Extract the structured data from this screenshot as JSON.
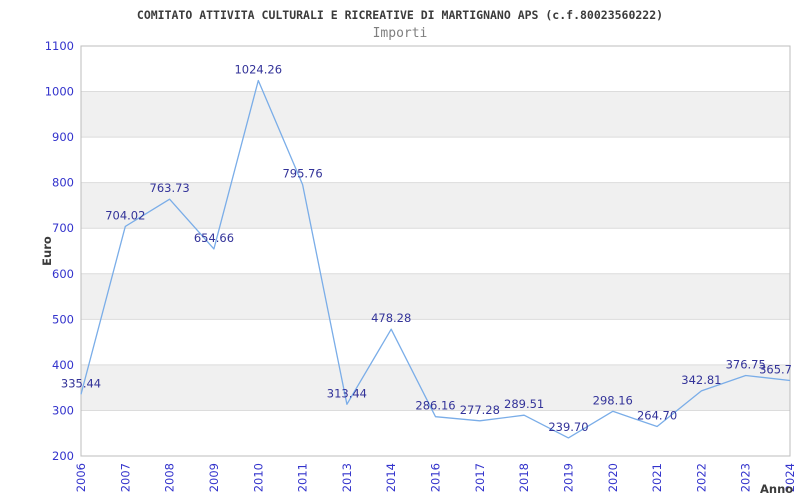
{
  "header": {
    "title": "COMITATO ATTIVITA CULTURALI E RICREATIVE DI MARTIGNANO APS (c.f.80023560222)",
    "subtitle": "Importi"
  },
  "chart_data": {
    "type": "line",
    "title": "COMITATO ATTIVITA CULTURALI E RICREATIVE DI MARTIGNANO APS (c.f.80023560222)",
    "subtitle": "Importi",
    "xlabel": "Anno",
    "ylabel": "Euro",
    "categories": [
      "2006",
      "2007",
      "2008",
      "2009",
      "2010",
      "2011",
      "2013",
      "2014",
      "2016",
      "2017",
      "2018",
      "2019",
      "2020",
      "2021",
      "2022",
      "2023",
      "2024"
    ],
    "series": [
      {
        "name": "Importi",
        "values": [
          335.44,
          704.02,
          763.73,
          654.66,
          1024.26,
          795.76,
          313.44,
          478.28,
          286.16,
          277.28,
          289.51,
          239.7,
          298.16,
          264.7,
          342.81,
          376.75,
          365.7
        ],
        "labels": [
          "335.44",
          "704.02",
          "763.73",
          "654.66",
          "1024.26",
          "795.76",
          "313.44",
          "478.28",
          "286.16",
          "277.28",
          "289.51",
          "239.70",
          "298.16",
          "264.70",
          "342.81",
          "376.75",
          "365.7"
        ]
      }
    ],
    "ylim": [
      200,
      1100
    ],
    "ytick_step": 100,
    "grid": "alternating-horizontal-bands",
    "legend": "none",
    "colors": {
      "line": "#7aade8",
      "tick_label": "#3333cc",
      "value_label": "#333399",
      "title": "#3b3b3b",
      "subtitle": "#7f7f7f",
      "band": "#f0f0f0",
      "grid_line": "#dcdcdc",
      "plot_border": "#bdbdbd",
      "axis_title": "#3b3b3b",
      "background": "#ffffff"
    }
  }
}
